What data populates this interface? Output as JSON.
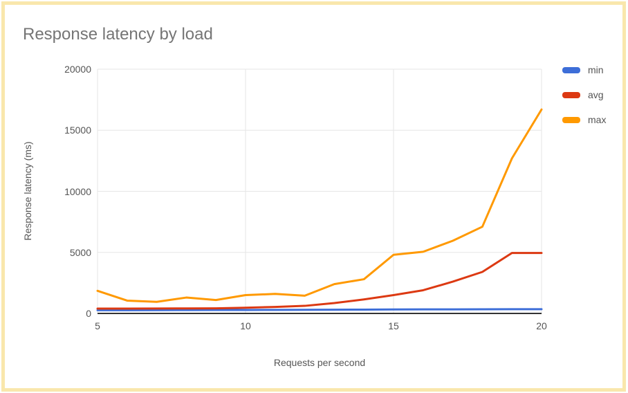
{
  "theme": {
    "frame_color": "#f9e7ac",
    "background": "#ffffff",
    "title_color": "#757575",
    "tick_color": "#545454",
    "axis_title_color": "#555555",
    "gridline_color": "#e6e6e6",
    "baseline_color": "#333333"
  },
  "chart_data": {
    "type": "line",
    "title": "Response latency by load",
    "xlabel": "Requests per second",
    "ylabel": "Response latency (ms)",
    "xlim": [
      5,
      20
    ],
    "ylim": [
      0,
      20000
    ],
    "x_ticks": [
      5,
      10,
      15,
      20
    ],
    "y_ticks": [
      0,
      5000,
      10000,
      15000,
      20000
    ],
    "grid": true,
    "legend_position": "right",
    "x": [
      5,
      6,
      7,
      8,
      9,
      10,
      11,
      12,
      13,
      14,
      15,
      16,
      17,
      18,
      19,
      20
    ],
    "series": [
      {
        "name": "min",
        "color": "#3d6ed8",
        "values": [
          260,
          265,
          270,
          275,
          280,
          285,
          290,
          295,
          305,
          315,
          325,
          330,
          335,
          340,
          345,
          350
        ]
      },
      {
        "name": "avg",
        "color": "#dc3912",
        "values": [
          400,
          400,
          405,
          410,
          420,
          470,
          530,
          620,
          850,
          1150,
          1500,
          1900,
          2600,
          3400,
          4950,
          4950
        ]
      },
      {
        "name": "max",
        "color": "#ff9900",
        "values": [
          1850,
          1050,
          950,
          1300,
          1100,
          1500,
          1600,
          1450,
          2400,
          2800,
          4800,
          5050,
          5950,
          7100,
          12700,
          16700
        ]
      }
    ]
  }
}
